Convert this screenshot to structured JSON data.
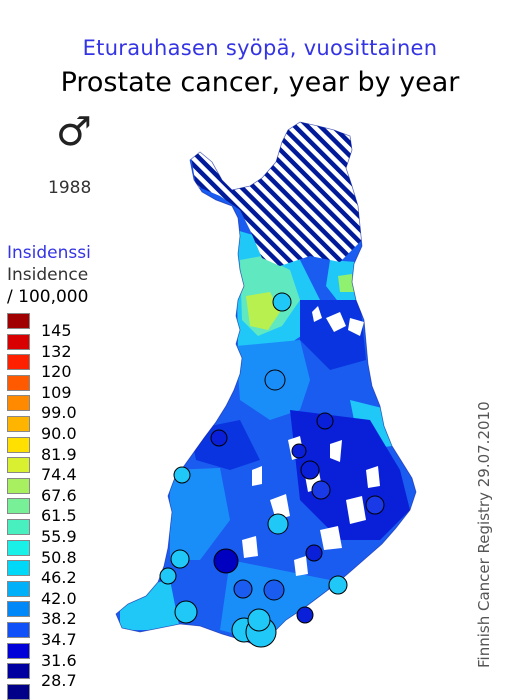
{
  "title_fi": "Eturauhasen syöpä, vuosittainen",
  "title_en": "Prostate cancer, year by year",
  "sex_symbol": "♂",
  "year": "1988",
  "legend": {
    "label_fi": "Insidenssi",
    "label_en": "Insidence",
    "unit": "/ 100,000",
    "classes": [
      {
        "label": "145",
        "color": "#a00000"
      },
      {
        "label": "132",
        "color": "#d80000"
      },
      {
        "label": "120",
        "color": "#ff2000"
      },
      {
        "label": "109",
        "color": "#ff5a00"
      },
      {
        "label": "99.0",
        "color": "#ff8a00"
      },
      {
        "label": "90.0",
        "color": "#ffb400"
      },
      {
        "label": "81.9",
        "color": "#ffe000"
      },
      {
        "label": "74.4",
        "color": "#d8f030"
      },
      {
        "label": "67.6",
        "color": "#a8f060"
      },
      {
        "label": "61.5",
        "color": "#78f098"
      },
      {
        "label": "55.9",
        "color": "#48f0c0"
      },
      {
        "label": "50.8",
        "color": "#18f0e8"
      },
      {
        "label": "46.2",
        "color": "#00d8f8"
      },
      {
        "label": "42.0",
        "color": "#00b0f8"
      },
      {
        "label": "38.2",
        "color": "#0088f8"
      },
      {
        "label": "34.7",
        "color": "#1050f8"
      },
      {
        "label": "31.6",
        "color": "#0000d8"
      },
      {
        "label": "28.7",
        "color": "#0000a0"
      },
      {
        "label": "",
        "color": "#000088"
      }
    ]
  },
  "source": "Finnish Cancer Registry 29.07.2010",
  "map": {
    "colors": {
      "base": "#1a5cf0",
      "dark": "#0a1fd8",
      "mid": "#1a8ef8",
      "light": "#20c8f8",
      "green": "#90f070",
      "lake": "#ffffff",
      "hatch": "#001a9a"
    },
    "markers": [
      {
        "value_class": 12,
        "lon": 0.49
      },
      {
        "value_class": 15,
        "lon": 0.5
      }
    ]
  }
}
